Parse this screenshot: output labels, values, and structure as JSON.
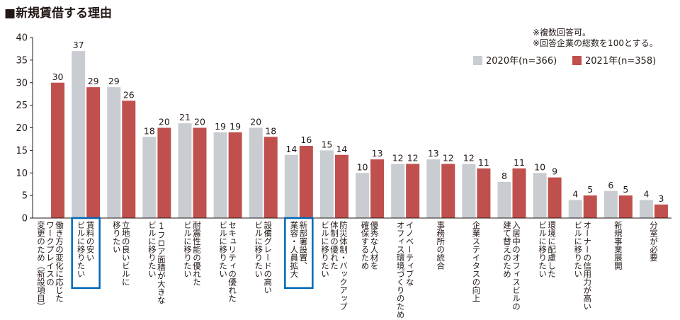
{
  "chart_data": {
    "type": "bar",
    "title": "■新規賃借する理由",
    "notes": [
      "※複数回答可。",
      "※回答企業の総数を100とする。"
    ],
    "ylim": [
      0,
      40
    ],
    "yticks": [
      "0",
      "5",
      "10",
      "15",
      "20",
      "25",
      "30",
      "35",
      "40"
    ],
    "categories": [
      [
        "働き方の変化に応じた",
        "ワークプレイスの",
        "変更のため（新設項目）"
      ],
      [
        "賃料の安い",
        "ビルに移りたい"
      ],
      [
        "立地の良いビルに",
        "移りたい"
      ],
      [
        "1フロア面積が大きな",
        "ビルに移りたい"
      ],
      [
        "耐震性能の優れた",
        "ビルに移りたい"
      ],
      [
        "セキュリティの優れた",
        "ビルに移りたい"
      ],
      [
        "設備グレードの高い",
        "ビルに移りたい"
      ],
      [
        "新部署設置、",
        "業容・人員拡大"
      ],
      [
        "防災体制・バックアップ",
        "体制の優れた",
        "ビルに移りたい"
      ],
      [
        "優秀な人材を",
        "確保するため"
      ],
      [
        "イノベーティブな",
        "オフィス環境づくりのため"
      ],
      [
        "事務所の統合"
      ],
      [
        "企業ステイタスの向上"
      ],
      [
        "入居中のオフィスビルの",
        "建て替えのため"
      ],
      [
        "環境に配慮した",
        "ビルに移りたい"
      ],
      [
        "オーナーの信用力が高い",
        "ビルに移りたい"
      ],
      [
        "新規事業展開"
      ],
      [
        "分室が必要"
      ]
    ],
    "highlighted": [
      1,
      7
    ],
    "series": [
      {
        "name": "2020年(n=366)",
        "color": "#c9cdd1",
        "values": [
          null,
          37,
          29,
          18,
          21,
          19,
          20,
          14,
          15,
          10,
          12,
          13,
          12,
          8,
          10,
          4,
          6,
          4
        ]
      },
      {
        "name": "2021年(n=358)",
        "color": "#c0504d",
        "values": [
          30,
          29,
          26,
          20,
          20,
          19,
          18,
          16,
          14,
          13,
          12,
          12,
          11,
          11,
          9,
          5,
          5,
          3
        ]
      }
    ],
    "highlight_color": "#0068b7"
  }
}
